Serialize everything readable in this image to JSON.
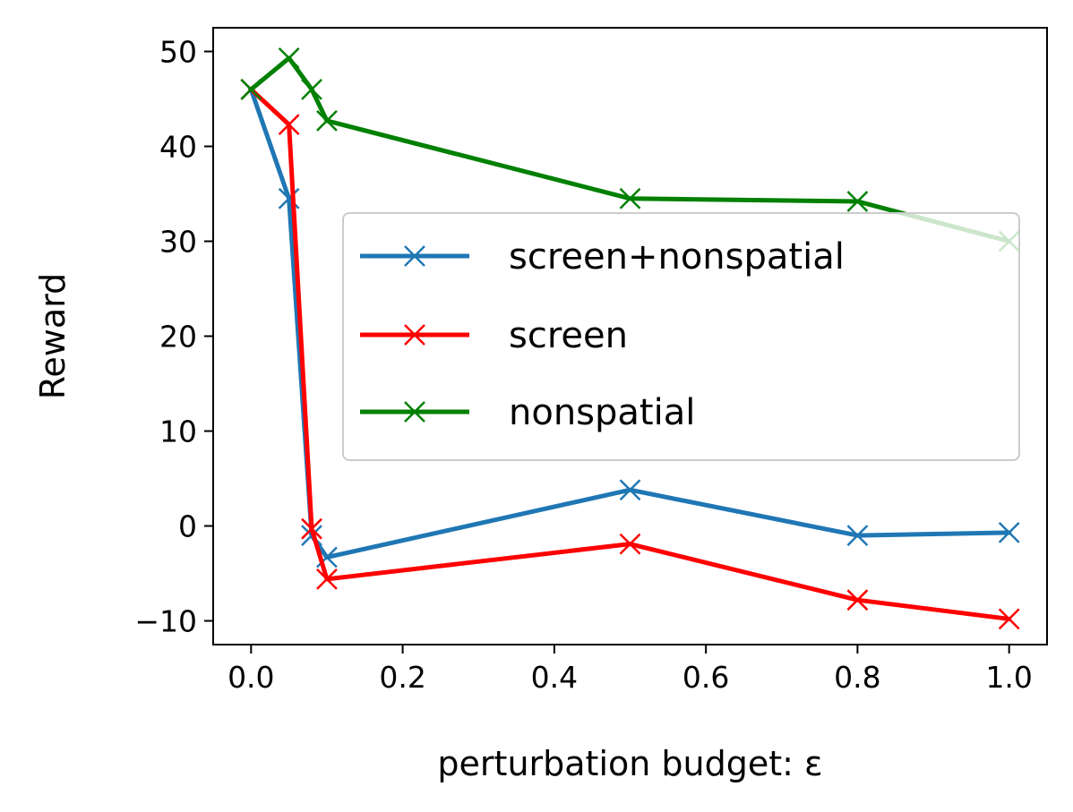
{
  "chart_data": {
    "type": "line",
    "xlabel": "perturbation budget: ε",
    "ylabel": "Reward",
    "xlim": [
      -0.05,
      1.05
    ],
    "ylim": [
      -12.5,
      52.5
    ],
    "xticks": [
      0.0,
      0.2,
      0.4,
      0.6,
      0.8,
      1.0
    ],
    "xtick_labels": [
      "0.0",
      "0.2",
      "0.4",
      "0.6",
      "0.8",
      "1.0"
    ],
    "yticks": [
      -10,
      0,
      10,
      20,
      30,
      40,
      50
    ],
    "ytick_labels": [
      "−10",
      "0",
      "10",
      "20",
      "30",
      "40",
      "50"
    ],
    "grid": false,
    "legend_position": "center-right",
    "series": [
      {
        "name": "screen+nonspatial",
        "color": "#1f77b4",
        "marker": "x",
        "x": [
          0.0,
          0.05,
          0.08,
          0.1,
          0.5,
          0.8,
          1.0
        ],
        "y": [
          46.0,
          34.5,
          -1.0,
          -3.3,
          3.8,
          -1.0,
          -0.7
        ]
      },
      {
        "name": "screen",
        "color": "#ff0000",
        "marker": "x",
        "x": [
          0.0,
          0.05,
          0.08,
          0.1,
          0.5,
          0.8,
          1.0
        ],
        "y": [
          46.0,
          42.3,
          -0.3,
          -5.6,
          -1.9,
          -7.8,
          -9.8
        ]
      },
      {
        "name": "nonspatial",
        "color": "#008000",
        "marker": "x",
        "x": [
          0.0,
          0.05,
          0.08,
          0.1,
          0.5,
          0.8,
          1.0
        ],
        "y": [
          46.0,
          49.3,
          46.0,
          42.7,
          34.5,
          34.2,
          30.0
        ]
      }
    ]
  }
}
